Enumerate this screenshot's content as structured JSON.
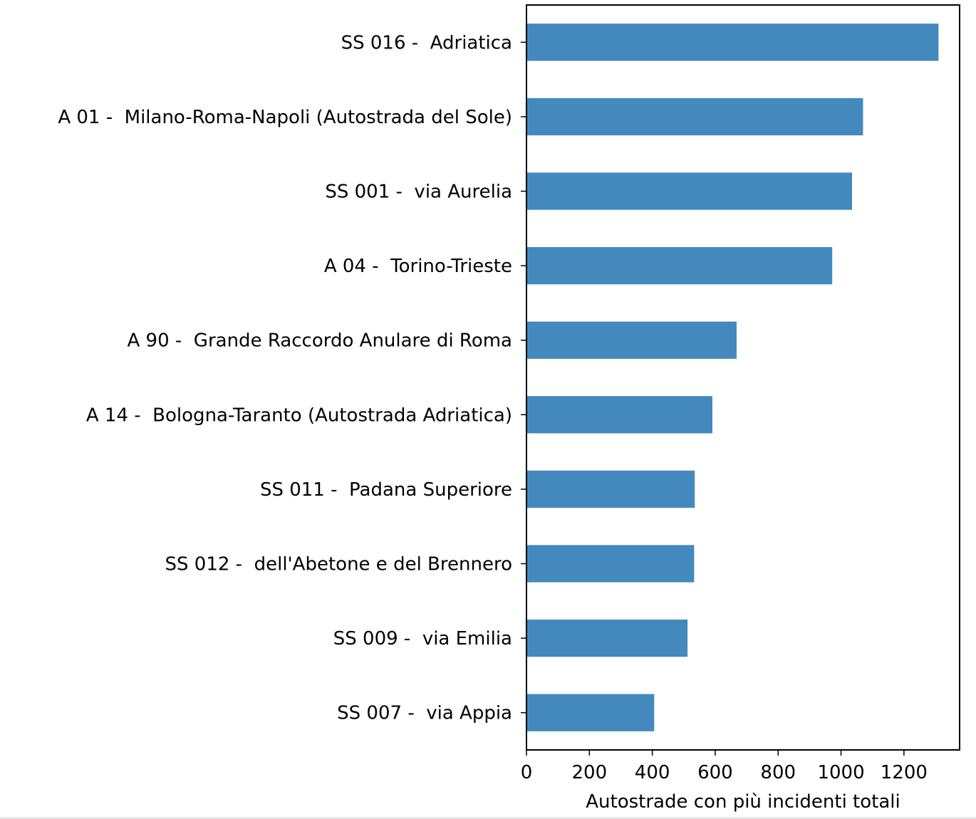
{
  "chart_data": {
    "type": "bar",
    "orientation": "horizontal",
    "categories": [
      "SS 016 -  Adriatica",
      "A 01 -  Milano-Roma-Napoli (Autostrada del Sole)",
      "SS 001 -  via Aurelia",
      "A 04 -  Torino-Trieste",
      "A 90 -  Grande Raccordo Anulare di Roma",
      "A 14 -  Bologna-Taranto (Autostrada Adriatica)",
      "SS 011 -  Padana Superiore",
      "SS 012 -  dell'Abetone e del Brennero",
      "SS 009 -  via Emilia",
      "SS 007 -  via Appia"
    ],
    "values": [
      1310,
      1070,
      1035,
      972,
      668,
      591,
      535,
      533,
      512,
      406
    ],
    "xlabel": "Autostrade con più incidenti totali",
    "ylabel": "",
    "title": "",
    "xlim": [
      0,
      1377
    ],
    "xticks": [
      0,
      200,
      400,
      600,
      800,
      1000,
      1200
    ],
    "grid": false,
    "bar_color": "#4389bd"
  }
}
